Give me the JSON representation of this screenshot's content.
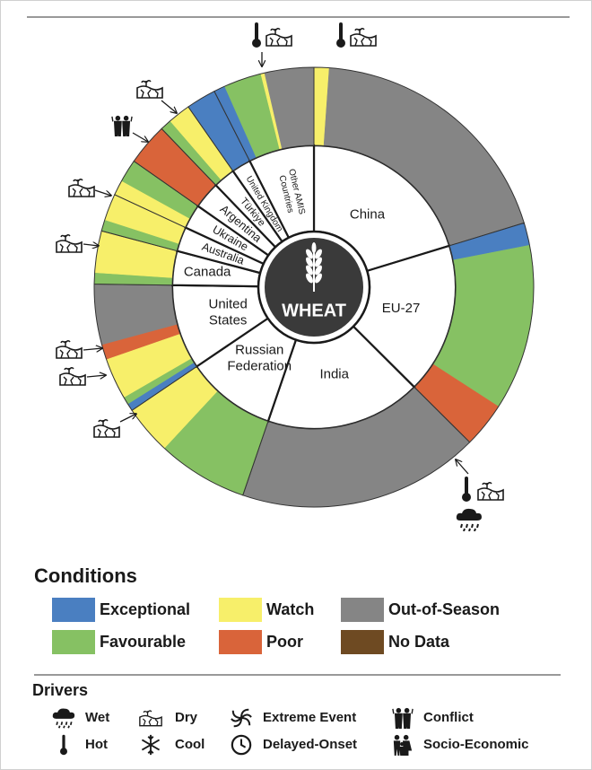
{
  "chart_data": {
    "type": "sunburst",
    "center_label": "WHEAT",
    "countries": [
      {
        "name": [
          "China"
        ],
        "share": 20.3,
        "segments": [
          {
            "condition": "Watch",
            "share": 4
          },
          {
            "condition": "Out-of-Season",
            "share": 69
          }
        ]
      },
      {
        "name": [
          "EU-27"
        ],
        "share": 17.2,
        "segments": [
          {
            "condition": "Exceptional",
            "share": 6
          },
          {
            "condition": "Favourable",
            "share": 44
          },
          {
            "condition": "Poor",
            "share": 12
          }
        ]
      },
      {
        "name": [
          "India"
        ],
        "share": 17.8,
        "segments": [
          {
            "condition": "Out-of-Season",
            "share": 64
          }
        ]
      },
      {
        "name": [
          "Russian",
          "Federation"
        ],
        "share": 10.3,
        "segments": [
          {
            "condition": "Favourable",
            "share": 24
          },
          {
            "condition": "Watch",
            "share": 13
          }
        ]
      },
      {
        "name": [
          "United",
          "States"
        ],
        "share": 9.7,
        "segments": [
          {
            "condition": "Exceptional",
            "share": 2
          },
          {
            "condition": "Favourable",
            "share": 2
          },
          {
            "condition": "Watch",
            "share": 11
          },
          {
            "condition": "Poor",
            "share": 4
          },
          {
            "condition": "Out-of-Season",
            "share": 16
          }
        ]
      },
      {
        "name": [
          "Canada"
        ],
        "share": 3.9,
        "segments": [
          {
            "condition": "Favourable",
            "share": 3
          },
          {
            "condition": "Watch",
            "share": 11
          }
        ]
      },
      {
        "name": [
          "Australia"
        ],
        "share": 2.8,
        "segments": [
          {
            "condition": "Favourable",
            "share": 3
          },
          {
            "condition": "Watch",
            "share": 7
          }
        ]
      },
      {
        "name": [
          "Ukraine"
        ],
        "share": 2.8,
        "segments": [
          {
            "condition": "Watch",
            "share": 4
          },
          {
            "condition": "Favourable",
            "share": 6
          }
        ]
      },
      {
        "name": [
          "Argentina"
        ],
        "share": 3.1,
        "segments": [
          {
            "condition": "Poor",
            "share": 11
          }
        ]
      },
      {
        "name": [
          "Türkiye"
        ],
        "share": 2.5,
        "segments": [
          {
            "condition": "Favourable",
            "share": 3
          },
          {
            "condition": "Watch",
            "share": 6
          }
        ]
      },
      {
        "name": [
          "United Kingdom"
        ],
        "share": 2.2,
        "segments": [
          {
            "condition": "Exceptional",
            "share": 8
          }
        ]
      },
      {
        "name": [
          "Other AMIS",
          "Countries"
        ],
        "share": 7.5,
        "segments": [
          {
            "condition": "Exceptional",
            "share": 3
          },
          {
            "condition": "Favourable",
            "share": 10
          },
          {
            "condition": "Watch",
            "share": 1
          },
          {
            "condition": "Out-of-Season",
            "share": 13
          }
        ]
      }
    ]
  },
  "conditions": {
    "title": "Conditions",
    "items": [
      {
        "name": "Exceptional",
        "color": "#4a7fc1"
      },
      {
        "name": "Watch",
        "color": "#f7ef6a"
      },
      {
        "name": "Out-of-Season",
        "color": "#858585"
      },
      {
        "name": "Favourable",
        "color": "#86c163"
      },
      {
        "name": "Poor",
        "color": "#d9643a"
      },
      {
        "name": "No Data",
        "color": "#6e4a22"
      }
    ]
  },
  "drivers": {
    "title": "Drivers",
    "items": [
      "Wet",
      "Dry",
      "Extreme Event",
      "Conflict",
      "Hot",
      "Cool",
      "Delayed-Onset",
      "Socio-Economic"
    ]
  }
}
